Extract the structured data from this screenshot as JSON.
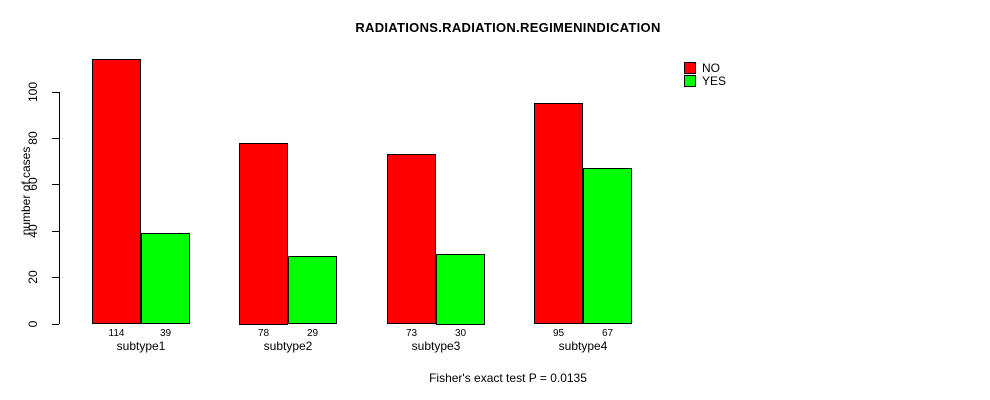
{
  "chart_data": {
    "type": "bar",
    "title": "RADIATIONS.RADIATION.REGIMENINDICATION",
    "xlabel": "",
    "ylabel": "number of cases",
    "categories": [
      "subtype1",
      "subtype2",
      "subtype3",
      "subtype4"
    ],
    "series": [
      {
        "name": "NO",
        "color": "#FF0000",
        "values": [
          114,
          78,
          73,
          95
        ]
      },
      {
        "name": "YES",
        "color": "#00FF00",
        "values": [
          39,
          29,
          30,
          67
        ]
      }
    ],
    "bar_value_labels": [
      [
        "114",
        "39"
      ],
      [
        "78",
        "29"
      ],
      [
        "73",
        "30"
      ],
      [
        "95",
        "67"
      ]
    ],
    "yticks": [
      0,
      20,
      40,
      60,
      80,
      100
    ],
    "ylim": [
      0,
      116
    ],
    "grid": false,
    "legend_position": "top-right",
    "annotation": "Fisher's exact test P = 0.0135"
  }
}
